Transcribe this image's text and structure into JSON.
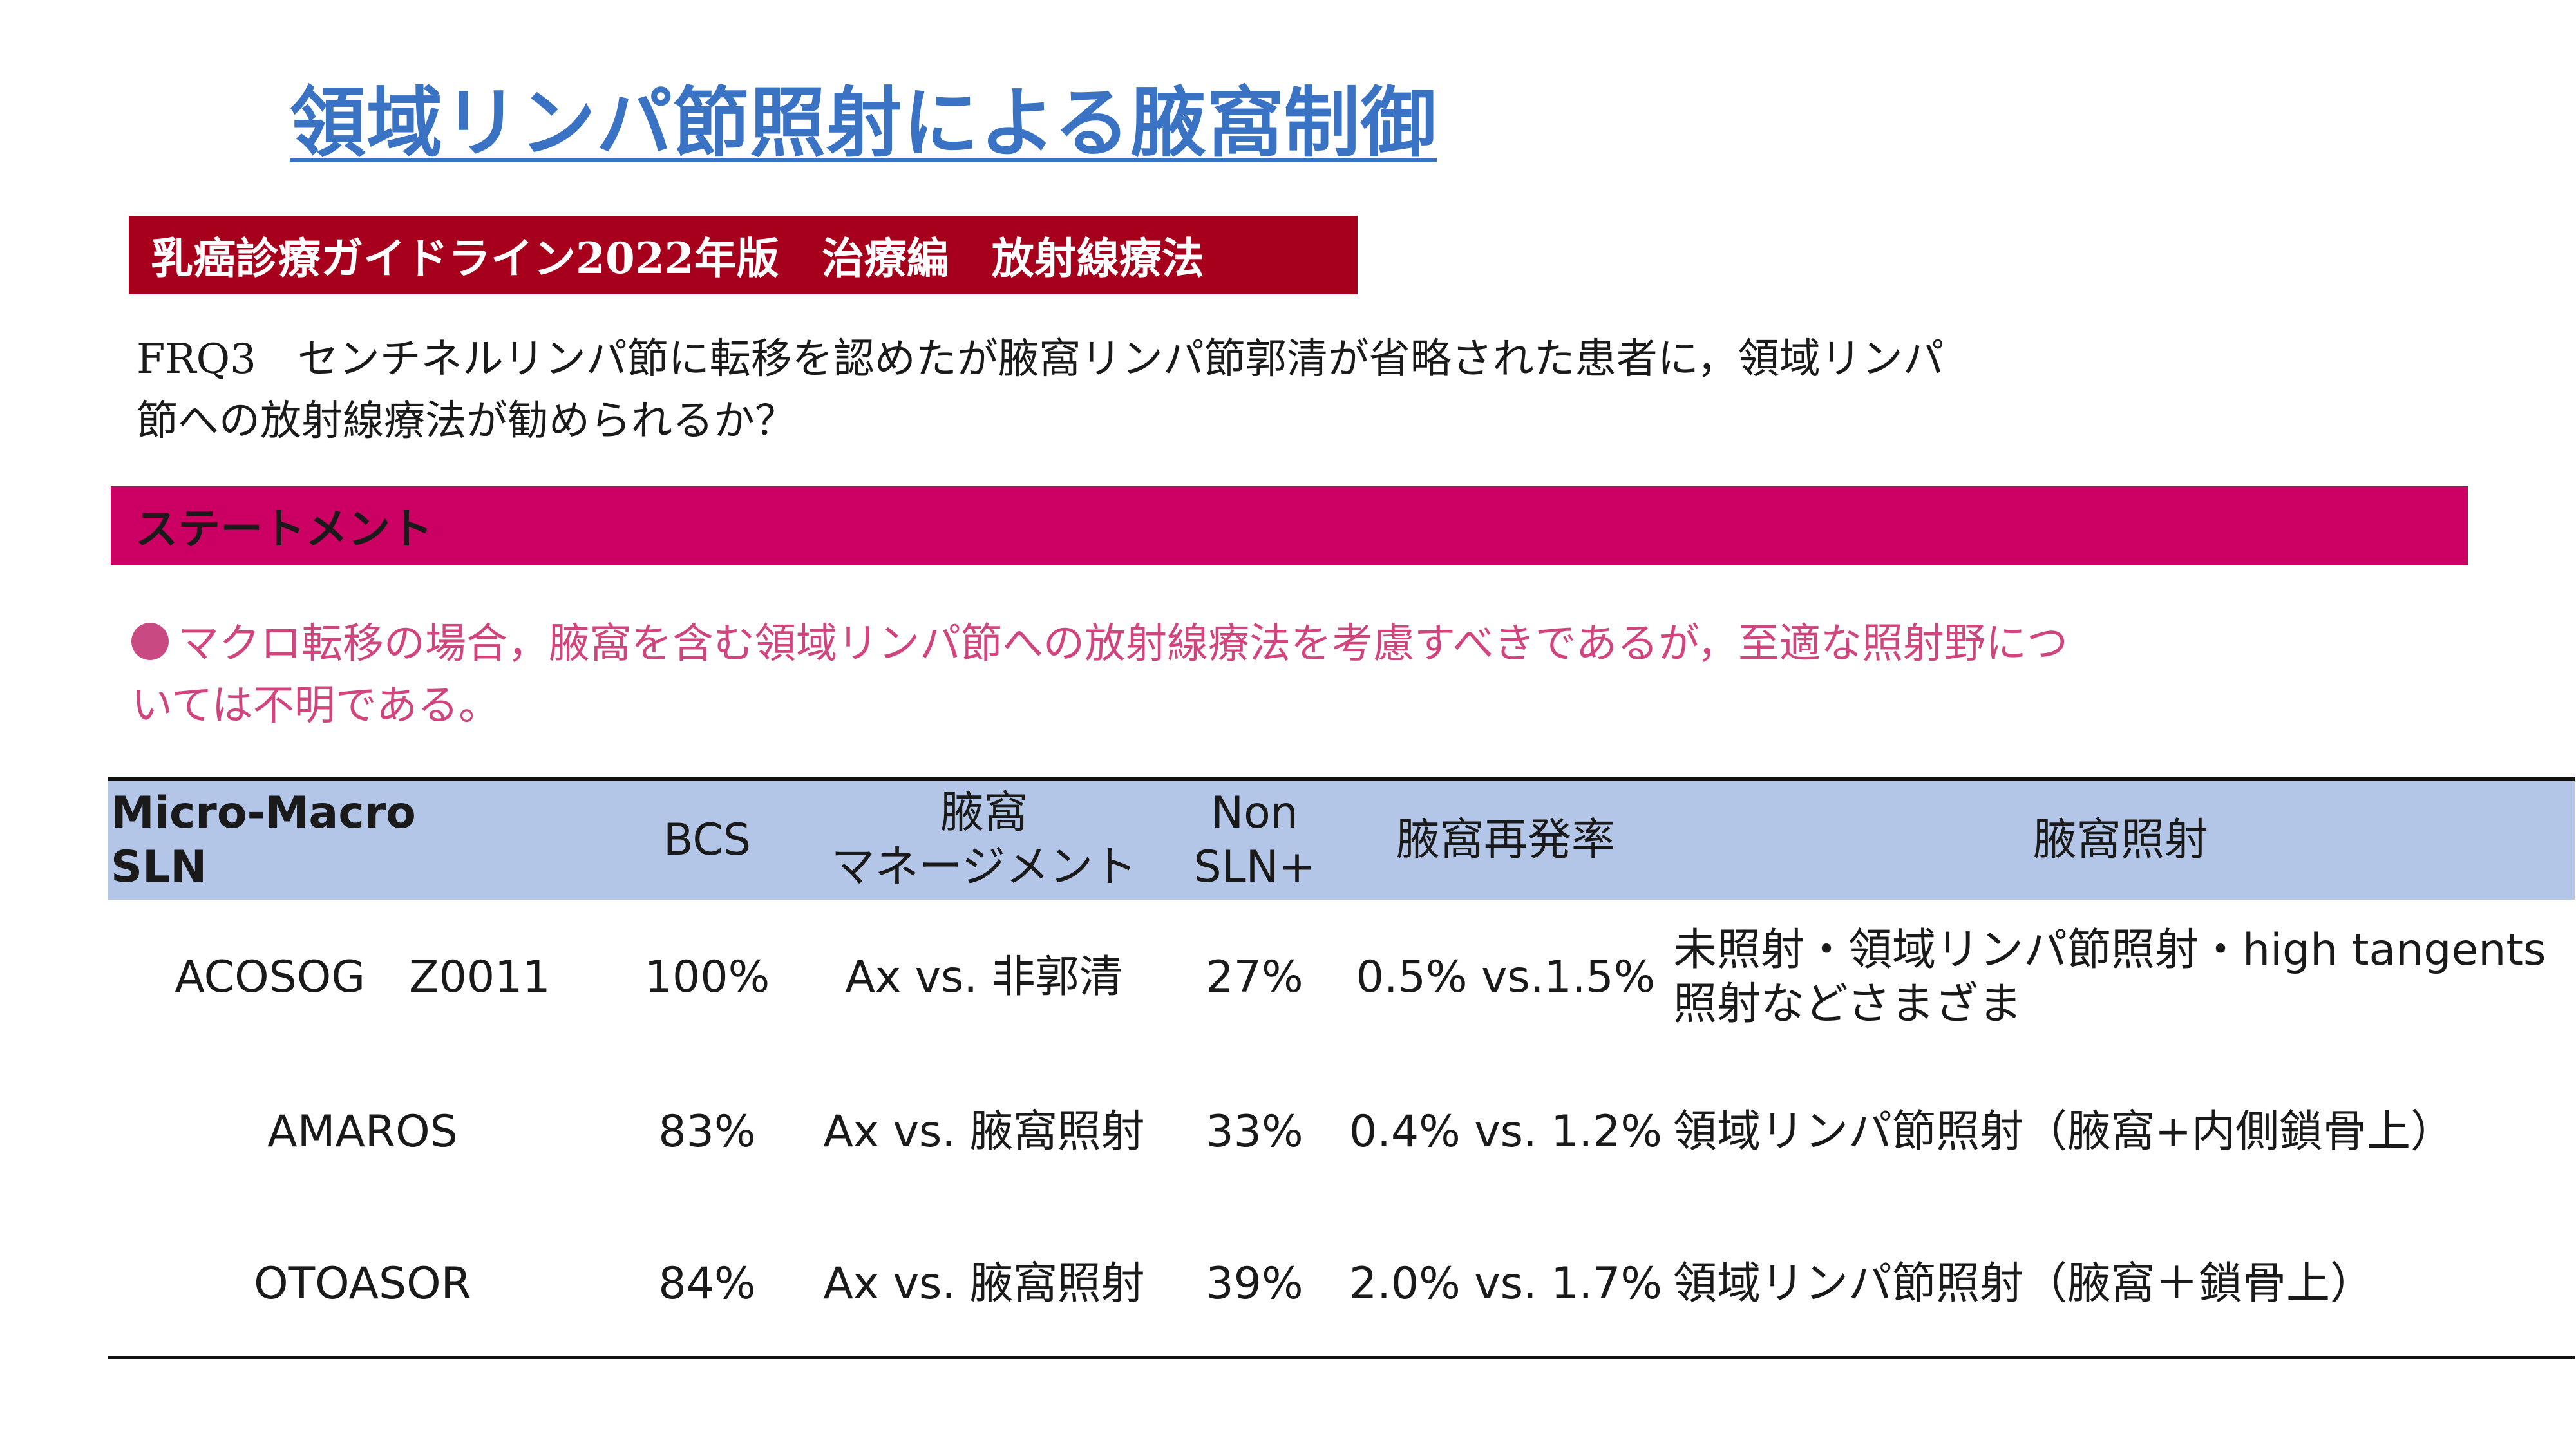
{
  "title": "領域リンパ節照射による腋窩制御",
  "guideline_banner": "乳癌診療ガイドライン2022年版　治療編　放射線療法",
  "question": {
    "line1": "FRQ3　センチネルリンパ節に転移を認めたが腋窩リンパ節郭清が省略された患者に，領域リンパ",
    "line2": "節への放射線療法が勧められるか？"
  },
  "statement_banner": "ステートメント",
  "statement": {
    "line1": "マクロ転移の場合，腋窩を含む領域リンパ節への放射線療法を考慮すべきであるが，至適な照射野につ",
    "line2": "いては不明である。"
  },
  "table": {
    "headers": {
      "sln": [
        "Micro-Macro",
        "SLN"
      ],
      "bcs": "BCS",
      "axilla_mgmt": [
        "腋窩",
        "マネージメント"
      ],
      "non_sln": [
        "Non",
        "SLN+"
      ],
      "recurrence": "腋窩再発率",
      "radiation": "腋窩照射"
    },
    "rows": [
      {
        "trial": "ACOSOG　Z0011",
        "bcs": "100%",
        "mgmt": "Ax vs. 非郭清",
        "non_sln": "27%",
        "recurrence": "0.5% vs.1.5%",
        "radiation": [
          "未照射・領域リンパ節照射・high tangents",
          "照射などさまざま"
        ]
      },
      {
        "trial": "AMAROS",
        "bcs": "83%",
        "mgmt": "Ax vs. 腋窩照射",
        "non_sln": "33%",
        "recurrence": "0.4% vs. 1.2%",
        "radiation": [
          "領域リンパ節照射（腋窩+内側鎖骨上）"
        ]
      },
      {
        "trial": "OTOASOR",
        "bcs": "84%",
        "mgmt": "Ax vs. 腋窩照射",
        "non_sln": "39%",
        "recurrence": "2.0% vs. 1.7%",
        "radiation": [
          "領域リンパ節照射（腋窩＋鎖骨上）"
        ]
      }
    ]
  },
  "colors": {
    "title": "#3a72c4",
    "guideline_banner": "#a6001d",
    "statement_banner": "#cc0063",
    "statement_text": "#d0457e",
    "table_header": "#b3c6e7"
  }
}
